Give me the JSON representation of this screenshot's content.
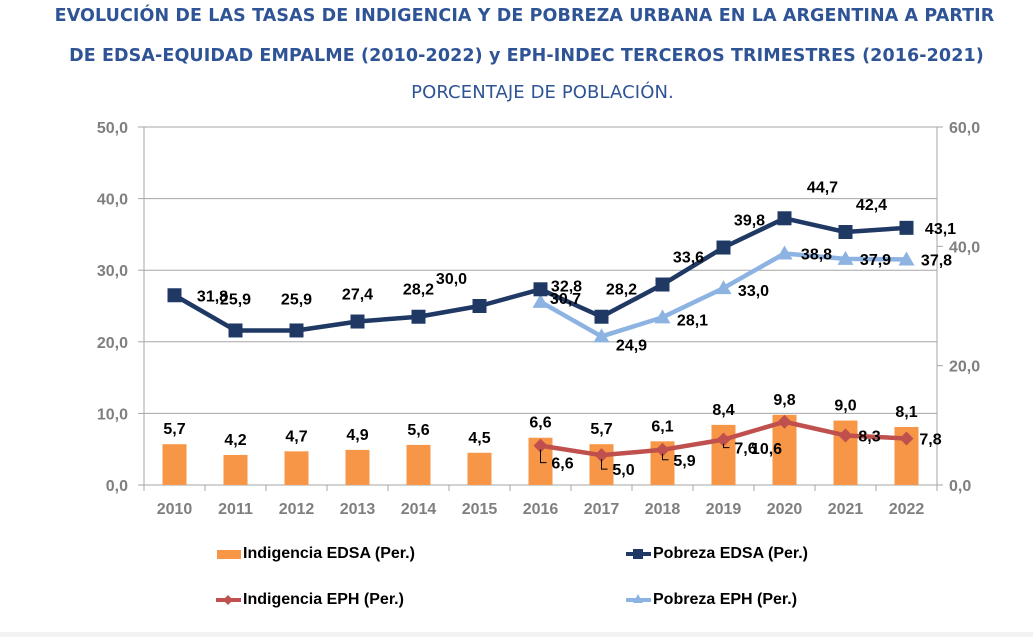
{
  "chart_data": {
    "type": "bar+line",
    "title": "EVOLUCIÓN DE LAS TASAS DE INDIGENCIA Y DE POBREZA URBANA EN LA ARGENTINA A PARTIR",
    "title_line2": "DE EDSA-EQUIDAD EMPALME (2010-2022) y EPH-INDEC TERCEROS TRIMESTRES (2016-2021)",
    "subtitle": "PORCENTAJE DE POBLACIÓN.",
    "xlabel": "",
    "ylabel": "",
    "categories": [
      "2010",
      "2011",
      "2012",
      "2013",
      "2014",
      "2015",
      "2016",
      "2017",
      "2018",
      "2019",
      "2020",
      "2021",
      "2022"
    ],
    "y_left": {
      "ylim": [
        0,
        50
      ],
      "ticks": [
        "0,0",
        "10,0",
        "20,0",
        "30,0",
        "40,0",
        "50,0"
      ],
      "tick_values": [
        0,
        10,
        20,
        30,
        40,
        50
      ]
    },
    "y_right": {
      "ylim": [
        0,
        60
      ],
      "ticks": [
        "0,0",
        "20,0",
        "40,0",
        "60,0"
      ],
      "tick_values": [
        0,
        20,
        40,
        60
      ]
    },
    "grid": true,
    "legend_position": "bottom",
    "series": [
      {
        "name": "Indigencia EDSA (Per.)",
        "kind": "bar",
        "axis": "left",
        "color": "#f79646",
        "values": [
          5.7,
          4.2,
          4.7,
          4.9,
          5.6,
          4.5,
          6.6,
          5.7,
          6.1,
          8.4,
          9.8,
          9.0,
          8.1
        ],
        "labels": [
          "5,7",
          "4,2",
          "4,7",
          "4,9",
          "5,6",
          "4,5",
          "6,6",
          "5,7",
          "6,1",
          "8,4",
          "9,8",
          "9,0",
          "8,1"
        ]
      },
      {
        "name": "Pobreza EDSA (Per.)",
        "kind": "line",
        "axis": "right",
        "marker": "square",
        "color": "#1f3864",
        "values": [
          31.8,
          25.9,
          25.9,
          27.4,
          28.2,
          30.0,
          32.8,
          28.2,
          33.6,
          39.8,
          44.7,
          42.4,
          43.1
        ],
        "labels": [
          "31,8",
          "25,9",
          "25,9",
          "27,4",
          "28,2",
          "30,0",
          "32,8",
          "28,2",
          "33,6",
          "39,8",
          "44,7",
          "42,4",
          "43,1"
        ]
      },
      {
        "name": "Indigencia EPH (Per.)",
        "kind": "line",
        "axis": "right",
        "marker": "diamond",
        "color": "#c0504d",
        "values": [
          null,
          null,
          null,
          null,
          null,
          null,
          6.6,
          5.0,
          5.9,
          7.6,
          10.6,
          8.3,
          7.8
        ],
        "labels": [
          null,
          null,
          null,
          null,
          null,
          null,
          "6,6",
          "5,0",
          "5,9",
          "7,6",
          "10,6",
          "8,3",
          "7,8"
        ]
      },
      {
        "name": "Pobreza EPH (Per.)",
        "kind": "line",
        "axis": "right",
        "marker": "triangle",
        "color": "#8db3e2",
        "values": [
          null,
          null,
          null,
          null,
          null,
          null,
          30.7,
          24.9,
          28.1,
          33.0,
          38.8,
          37.9,
          37.8
        ],
        "labels": [
          null,
          null,
          null,
          null,
          null,
          null,
          "30,7",
          "24,9",
          "28,1",
          "33,0",
          "38,8",
          "37,9",
          "37,8"
        ]
      }
    ]
  },
  "header": {
    "title_line1": "EVOLUCIÓN DE LAS TASAS DE INDIGENCIA Y DE POBREZA URBANA EN LA ARGENTINA A PARTIR",
    "title_line2": "DE EDSA-EQUIDAD EMPALME (2010-2022) y EPH-INDEC TERCEROS TRIMESTRES (2016-2021)",
    "subtitle": "PORCENTAJE DE POBLACIÓN."
  },
  "legend": {
    "items": [
      {
        "label": "Indigencia EDSA (Per.)",
        "icon": "bar-swatch",
        "color": "#f79646"
      },
      {
        "label": "Pobreza EDSA (Per.)",
        "icon": "line-square-marker",
        "color": "#1f3864"
      },
      {
        "label": "Indigencia EPH (Per.)",
        "icon": "line-diamond-marker",
        "color": "#c0504d"
      },
      {
        "label": "Pobreza EPH (Per.)",
        "icon": "line-triangle-marker",
        "color": "#8db3e2"
      }
    ]
  }
}
